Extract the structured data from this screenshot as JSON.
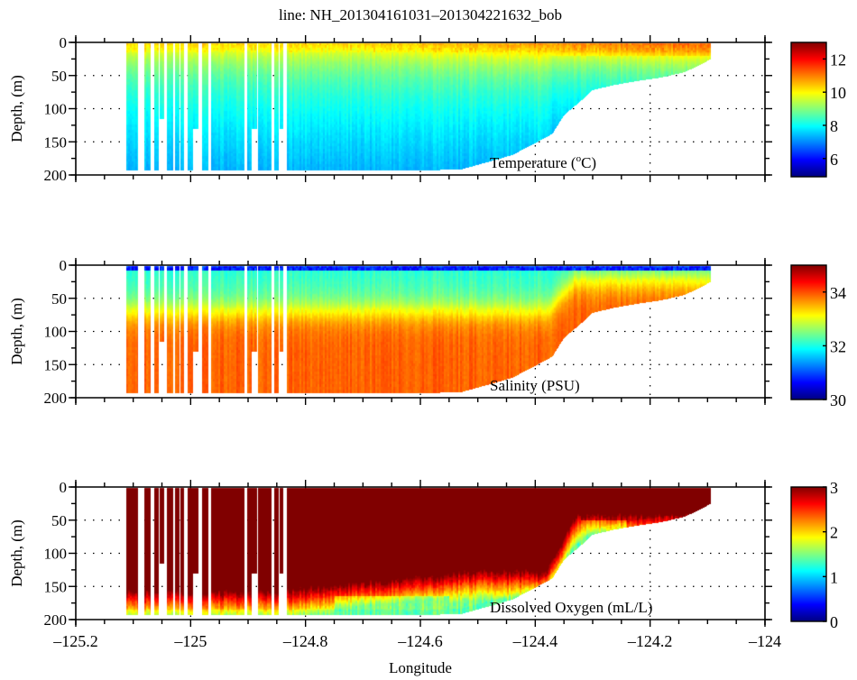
{
  "title": "line: NH_201304161031–201304221632_bob",
  "chart_data": {
    "type": "heatmap",
    "figure_title": "line: NH_201304161031–201304221632_bob",
    "xlabel": "Longitude",
    "xlim": [
      -125.2,
      -124.0
    ],
    "xticks": [
      -125.2,
      -125.0,
      -124.8,
      -124.6,
      -124.4,
      -124.2,
      -124.0
    ],
    "xtick_labels": [
      "–125.2",
      "–125",
      "–124.8",
      "–124.6",
      "–124.4",
      "–124.2",
      "–124"
    ],
    "x_minor_step": 0.05,
    "grid": "dotted",
    "colormap": "jet",
    "data_extent_lon": [
      -125.112,
      -124.094
    ],
    "profile_stripes": [
      {
        "lon": [
          -125.112,
          -125.092
        ],
        "max_depth": 193
      },
      {
        "lon": [
          -125.081,
          -125.07
        ],
        "max_depth": 193
      },
      {
        "lon": [
          -125.064,
          -125.056
        ],
        "max_depth": 193
      },
      {
        "lon": [
          -125.054,
          -125.046
        ],
        "max_depth": 115
      },
      {
        "lon": [
          -125.041,
          -125.03
        ],
        "max_depth": 193
      },
      {
        "lon": [
          -125.028,
          -125.019
        ],
        "max_depth": 193
      },
      {
        "lon": [
          -125.018,
          -125.011
        ],
        "max_depth": 193
      },
      {
        "lon": [
          -125.005,
          -124.996
        ],
        "max_depth": 193
      },
      {
        "lon": [
          -124.996,
          -124.987
        ],
        "max_depth": 130
      },
      {
        "lon": [
          -124.98,
          -124.969
        ],
        "max_depth": 193
      },
      {
        "lon": [
          -124.965,
          -124.906
        ],
        "max_depth": 193
      },
      {
        "lon": [
          -124.902,
          -124.894
        ],
        "max_depth": 193
      },
      {
        "lon": [
          -124.893,
          -124.885
        ],
        "max_depth": 130
      },
      {
        "lon": [
          -124.882,
          -124.859
        ],
        "max_depth": 193
      },
      {
        "lon": [
          -124.855,
          -124.846
        ],
        "max_depth": 193
      },
      {
        "lon": [
          -124.845,
          -124.838
        ],
        "max_depth": 130
      },
      {
        "lon": [
          -124.832,
          -124.094
        ],
        "max_depth": 193
      }
    ],
    "bottom_profile": {
      "lon": [
        -124.6,
        -124.53,
        -124.48,
        -124.44,
        -124.4,
        -124.37,
        -124.35,
        -124.32,
        -124.3,
        -124.26,
        -124.22,
        -124.18,
        -124.14,
        -124.11,
        -124.094
      ],
      "depth": [
        193,
        192,
        180,
        170,
        152,
        138,
        110,
        88,
        72,
        64,
        58,
        53,
        45,
        33,
        25
      ]
    },
    "panels": [
      {
        "name": "temperature",
        "annotation": "Temperature (°C)",
        "annotation_main": "Temperature (",
        "annotation_sup": "o",
        "annotation_unit": "C)",
        "ylabel": "Depth, (m)",
        "ylim": [
          0,
          200
        ],
        "yticks": [
          0,
          50,
          100,
          150,
          200
        ],
        "ytick_labels": [
          "0",
          "50",
          "100",
          "150",
          "200"
        ],
        "clim": [
          4.9,
          13.0
        ],
        "colorbar_ticks": [
          6,
          8,
          10,
          12
        ],
        "colorbar_tick_labels": [
          "6",
          "8",
          "10",
          "12"
        ],
        "field": {
          "surface_value": 10.4,
          "surface_value_east": 11.3,
          "mid_value": 8.6,
          "deep_value": 7.3,
          "description": "warm surface layer (~10-11.5 °C), cooling to ~7-8 °C at depth"
        }
      },
      {
        "name": "salinity",
        "annotation": "Salinity (PSU)",
        "ylabel": "Depth, (m)",
        "ylim": [
          0,
          200
        ],
        "yticks": [
          0,
          50,
          100,
          150,
          200
        ],
        "ytick_labels": [
          "0",
          "50",
          "100",
          "150",
          "200"
        ],
        "clim": [
          30.0,
          35.0
        ],
        "colorbar_ticks": [
          30,
          32,
          34
        ],
        "colorbar_tick_labels": [
          "30",
          "32",
          "34"
        ],
        "field": {
          "surface_value": 31.0,
          "mid_value": 32.3,
          "deep_value": 33.9,
          "description": "fresh surface water (~30-31.5 PSU) over saltier deep water (~33.9 PSU)"
        }
      },
      {
        "name": "oxygen",
        "annotation": "Dissolved Oxygen (mL/L)",
        "ylabel": "Depth, (m)",
        "ylim": [
          0,
          200
        ],
        "yticks": [
          0,
          50,
          100,
          150,
          200
        ],
        "ytick_labels": [
          "0",
          "50",
          "100",
          "150",
          "200"
        ],
        "clim": [
          0.0,
          3.0
        ],
        "colorbar_ticks": [
          0,
          1,
          2,
          3
        ],
        "colorbar_tick_labels": [
          "0",
          "1",
          "2",
          "3"
        ],
        "field": {
          "surface_value": 3.0,
          "deep_value": 2.0,
          "min_value": 1.5,
          "description": "saturated (>3 mL/L) above ~120 m offshore; hypoxic-trending (1.5-2.3 mL/L) near bottom and on shelf"
        }
      }
    ]
  }
}
